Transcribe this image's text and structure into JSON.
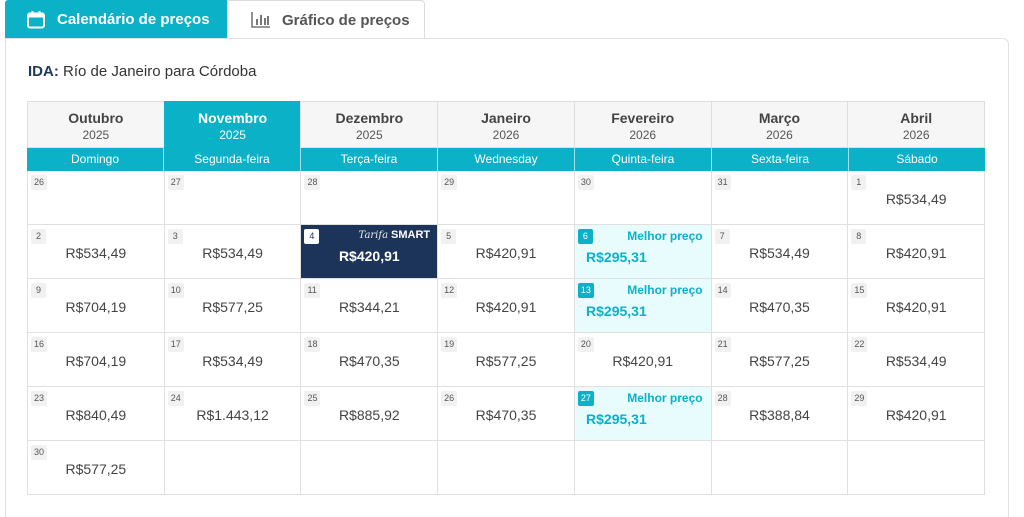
{
  "tabs": [
    {
      "label": "Calendário de preços",
      "icon": "calendar-icon",
      "active": true
    },
    {
      "label": "Gráfico de preços",
      "icon": "bar-chart-icon",
      "active": false
    }
  ],
  "route": {
    "prefix": "IDA:",
    "text": "Río de Janeiro para Córdoba"
  },
  "months": [
    {
      "name": "Outubro",
      "year": "2025"
    },
    {
      "name": "Novembro",
      "year": "2025"
    },
    {
      "name": "Dezembro",
      "year": "2025"
    },
    {
      "name": "Janeiro",
      "year": "2026"
    },
    {
      "name": "Fevereiro",
      "year": "2026"
    },
    {
      "name": "Março",
      "year": "2026"
    },
    {
      "name": "Abril",
      "year": "2026"
    }
  ],
  "weekdays": [
    "Domingo",
    "Segunda-feira",
    "Terça-feira",
    "Wednesday",
    "Quinta-feira",
    "Sexta-feira",
    "Sábado"
  ],
  "smart_label": {
    "script": "Tarifa",
    "bold": "SMART"
  },
  "best_label": "Melhor preço",
  "weeks": [
    [
      {
        "day": "26",
        "price": ""
      },
      {
        "day": "27",
        "price": ""
      },
      {
        "day": "28",
        "price": ""
      },
      {
        "day": "29",
        "price": ""
      },
      {
        "day": "30",
        "price": ""
      },
      {
        "day": "31",
        "price": ""
      },
      {
        "day": "1",
        "price": "R$534,49"
      }
    ],
    [
      {
        "day": "2",
        "price": "R$534,49"
      },
      {
        "day": "3",
        "price": "R$534,49"
      },
      {
        "day": "4",
        "price": "R$420,91"
      },
      {
        "day": "5",
        "price": "R$420,91"
      },
      {
        "day": "6",
        "price": "R$295,31"
      },
      {
        "day": "7",
        "price": "R$534,49"
      },
      {
        "day": "8",
        "price": "R$420,91"
      }
    ],
    [
      {
        "day": "9",
        "price": "R$704,19"
      },
      {
        "day": "10",
        "price": "R$577,25"
      },
      {
        "day": "11",
        "price": "R$344,21"
      },
      {
        "day": "12",
        "price": "R$420,91"
      },
      {
        "day": "13",
        "price": "R$295,31"
      },
      {
        "day": "14",
        "price": "R$470,35"
      },
      {
        "day": "15",
        "price": "R$420,91"
      }
    ],
    [
      {
        "day": "16",
        "price": "R$704,19"
      },
      {
        "day": "17",
        "price": "R$534,49"
      },
      {
        "day": "18",
        "price": "R$470,35"
      },
      {
        "day": "19",
        "price": "R$577,25"
      },
      {
        "day": "20",
        "price": "R$420,91"
      },
      {
        "day": "21",
        "price": "R$577,25"
      },
      {
        "day": "22",
        "price": "R$534,49"
      }
    ],
    [
      {
        "day": "23",
        "price": "R$840,49"
      },
      {
        "day": "24",
        "price": "R$1.443,12"
      },
      {
        "day": "25",
        "price": "R$885,92"
      },
      {
        "day": "26",
        "price": "R$470,35"
      },
      {
        "day": "27",
        "price": "R$295,31"
      },
      {
        "day": "28",
        "price": "R$388,84"
      },
      {
        "day": "29",
        "price": "R$420,91"
      }
    ],
    [
      {
        "day": "30",
        "price": "R$577,25"
      },
      {
        "day": "",
        "price": ""
      },
      {
        "day": "",
        "price": ""
      },
      {
        "day": "",
        "price": ""
      },
      {
        "day": "",
        "price": ""
      },
      {
        "day": "",
        "price": ""
      },
      {
        "day": "",
        "price": ""
      }
    ]
  ],
  "colors": {
    "accent": "#0ab1c7",
    "selected": "#1c3459",
    "best_bg": "#e8fbfd"
  }
}
